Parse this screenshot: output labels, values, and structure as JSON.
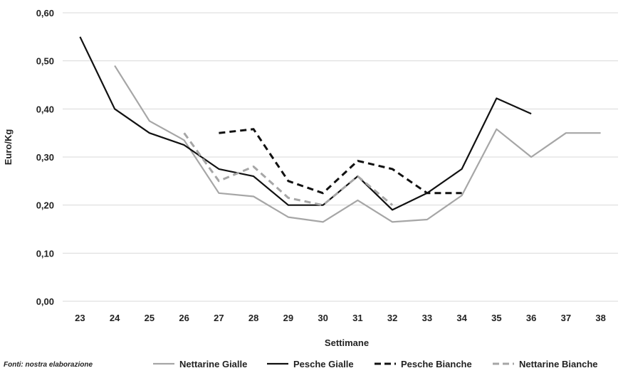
{
  "chart_data": {
    "type": "line",
    "xlabel": "Settimane",
    "ylabel": "Euro/Kg",
    "ylim": [
      0,
      0.6
    ],
    "yticks": [
      0,
      0.1,
      0.2,
      0.3,
      0.4,
      0.5,
      0.6
    ],
    "ytick_labels": [
      "0,00",
      "0,10",
      "0,20",
      "0,30",
      "0,40",
      "0,50",
      "0,60"
    ],
    "categories": [
      "23",
      "24",
      "25",
      "26",
      "27",
      "28",
      "29",
      "30",
      "31",
      "32",
      "33",
      "34",
      "35",
      "36",
      "37",
      "38"
    ],
    "grid": "horizontal",
    "legend_position": "bottom",
    "source_note": "Fonti: nostra elaborazione",
    "series": [
      {
        "name": "Nettarine Gialle",
        "color": "#a6a6a6",
        "dash": "solid",
        "values": [
          null,
          0.49,
          0.375,
          0.335,
          0.225,
          0.218,
          0.175,
          0.165,
          0.21,
          0.165,
          0.17,
          0.22,
          0.358,
          0.3,
          0.35,
          0.35
        ]
      },
      {
        "name": "Pesche Gialle",
        "color": "#111111",
        "dash": "solid",
        "values": [
          0.55,
          0.4,
          0.35,
          0.325,
          0.275,
          0.26,
          0.2,
          0.2,
          0.26,
          0.19,
          0.225,
          0.275,
          0.422,
          0.39,
          null,
          null
        ]
      },
      {
        "name": "Pesche Bianche",
        "color": "#111111",
        "dash": "dashed",
        "values": [
          null,
          null,
          null,
          null,
          0.35,
          0.358,
          0.25,
          0.225,
          0.292,
          0.275,
          0.225,
          0.225,
          null,
          null,
          null,
          null
        ]
      },
      {
        "name": "Nettarine Bianche",
        "color": "#a6a6a6",
        "dash": "dashed",
        "values": [
          null,
          null,
          null,
          0.35,
          0.25,
          0.28,
          0.215,
          0.2,
          0.26,
          0.2,
          null,
          null,
          null,
          null,
          null,
          null
        ]
      }
    ]
  }
}
